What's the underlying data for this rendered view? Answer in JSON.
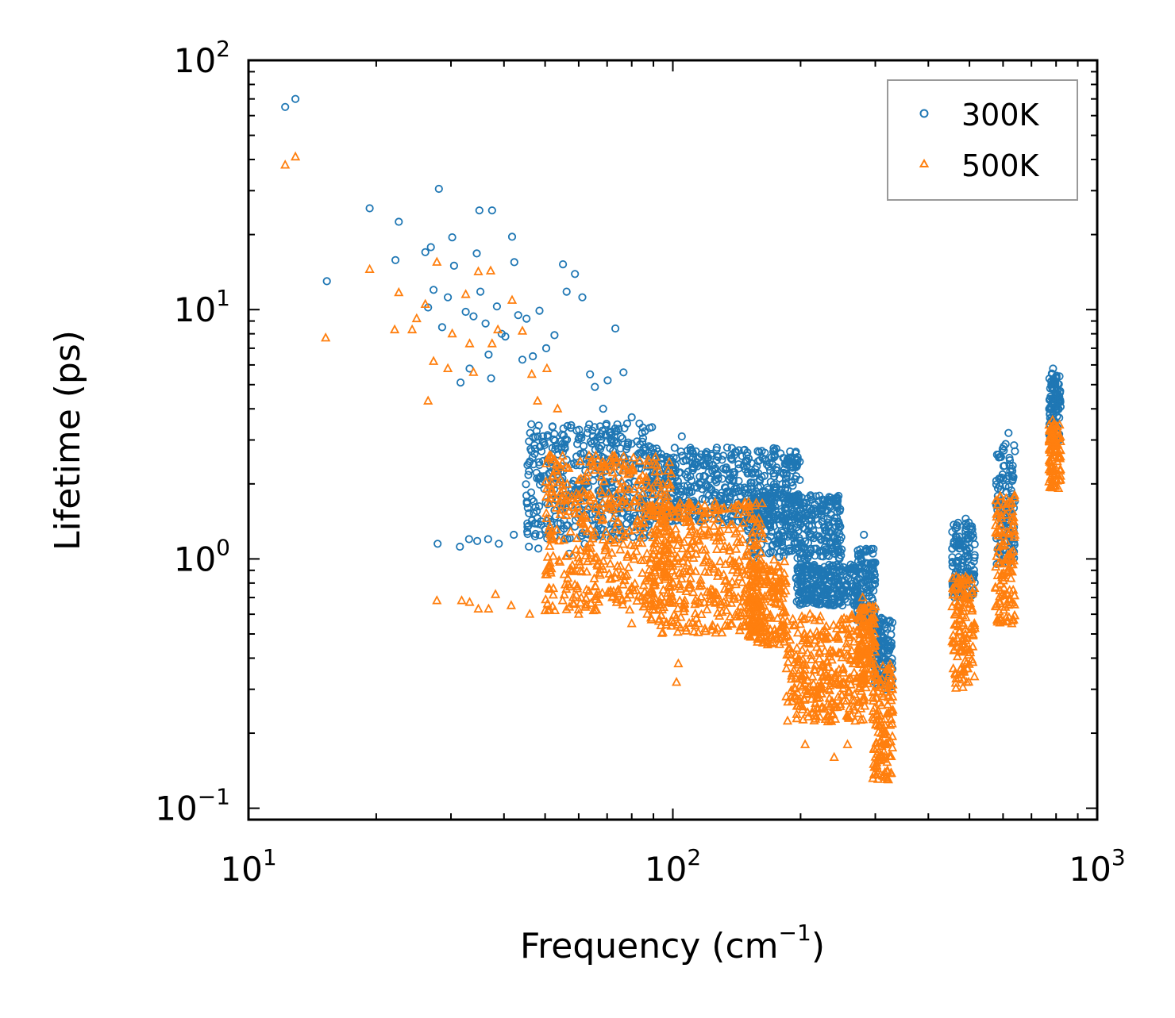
{
  "chart_data": {
    "type": "scatter",
    "xscale": "log",
    "yscale": "log",
    "xlim": [
      10,
      1000
    ],
    "ylim": [
      0.09,
      100
    ],
    "xlabel": "Frequency (cm",
    "xlabel_sup": "−1",
    "xlabel_end": ")",
    "ylabel": "Lifetime (ps)",
    "x_ticks": [
      {
        "value": 10,
        "base": "10",
        "exp": "1"
      },
      {
        "value": 100,
        "base": "10",
        "exp": "2"
      },
      {
        "value": 1000,
        "base": "10",
        "exp": "3"
      }
    ],
    "y_ticks": [
      {
        "value": 0.1,
        "base": "10",
        "exp": "−1"
      },
      {
        "value": 1,
        "base": "10",
        "exp": "0"
      },
      {
        "value": 10,
        "base": "10",
        "exp": "1"
      },
      {
        "value": 100,
        "base": "10",
        "exp": "2"
      }
    ],
    "legend_position": "top-right",
    "series": [
      {
        "name": "300K",
        "color": "#1f77b4",
        "marker": "circle",
        "points": [
          [
            12.2,
            65
          ],
          [
            12.9,
            70
          ],
          [
            15.3,
            13
          ],
          [
            19.3,
            25.5
          ],
          [
            22.2,
            15.8
          ],
          [
            22.6,
            22.5
          ],
          [
            26.1,
            17
          ],
          [
            26.5,
            10.2
          ],
          [
            26.9,
            17.8
          ],
          [
            27.3,
            12
          ],
          [
            28.1,
            30.5
          ],
          [
            28.6,
            8.5
          ],
          [
            29.5,
            11.2
          ],
          [
            30.2,
            19.5
          ],
          [
            30.5,
            15
          ],
          [
            31.6,
            5.1
          ],
          [
            32.5,
            9.8
          ],
          [
            33.2,
            5.8
          ],
          [
            33.9,
            9.4
          ],
          [
            34.5,
            16.8
          ],
          [
            35.0,
            25
          ],
          [
            35.2,
            11.8
          ],
          [
            36.2,
            8.8
          ],
          [
            36.8,
            6.6
          ],
          [
            37.3,
            5.3
          ],
          [
            37.5,
            25
          ],
          [
            38.5,
            10.3
          ],
          [
            39.5,
            8
          ],
          [
            40.3,
            7.8
          ],
          [
            41.8,
            19.6
          ],
          [
            42.3,
            15.5
          ],
          [
            43.2,
            9.5
          ],
          [
            44.2,
            6.3
          ],
          [
            45.2,
            9.2
          ],
          [
            46.8,
            6.5
          ],
          [
            48.5,
            9.9
          ],
          [
            50.3,
            7
          ],
          [
            52.6,
            7.9
          ],
          [
            55.1,
            15.2
          ],
          [
            56.2,
            11.8
          ],
          [
            58.8,
            13.9
          ],
          [
            61.2,
            11.2
          ],
          [
            63.8,
            5.5
          ],
          [
            65.5,
            4.9
          ],
          [
            68.5,
            4
          ],
          [
            70.2,
            5.2
          ],
          [
            73.2,
            8.4
          ],
          [
            76.5,
            5.6
          ],
          [
            80,
            3.7
          ],
          [
            105,
            3.1
          ],
          [
            138,
            2.5
          ],
          [
            150,
            2.2
          ],
          [
            170,
            1.6
          ],
          [
            185,
            2.2
          ],
          [
            27.9,
            1.15
          ],
          [
            31.5,
            1.12
          ],
          [
            33.1,
            1.2
          ],
          [
            34.6,
            1.18
          ],
          [
            36.7,
            1.2
          ],
          [
            38.9,
            1.15
          ],
          [
            42.2,
            1.25
          ],
          [
            45.8,
            1.12
          ],
          [
            48.2,
            1.1
          ],
          [
            52.8,
            1.22
          ],
          [
            57,
            1.05
          ],
          [
            62,
            1.15
          ],
          [
            67,
            1.25
          ],
          [
            200,
            0.95
          ],
          [
            230,
            0.9
          ],
          [
            250,
            0.82
          ],
          [
            282,
            1.25
          ],
          [
            310,
            0.58
          ],
          [
            326,
            0.45
          ],
          [
            490,
            1.45
          ],
          [
            618,
            3.2
          ],
          [
            787,
            5.8
          ]
        ],
        "clusters": [
          {
            "x": [
              45,
              90
            ],
            "y": [
              1.2,
              3.5
            ]
          },
          {
            "x": [
              88,
              200
            ],
            "y": [
              1.4,
              2.8
            ]
          },
          {
            "x": [
              150,
              250
            ],
            "y": [
              1.0,
              1.8
            ]
          },
          {
            "x": [
              195,
              275
            ],
            "y": [
              0.65,
              0.95
            ]
          },
          {
            "x": [
              270,
              300
            ],
            "y": [
              0.55,
              1.1
            ]
          },
          {
            "x": [
              298,
              330
            ],
            "y": [
              0.3,
              0.58
            ]
          },
          {
            "x": [
              455,
              515
            ],
            "y": [
              0.7,
              1.4
            ]
          },
          {
            "x": [
              578,
              640
            ],
            "y": [
              0.95,
              2.9
            ]
          },
          {
            "x": [
              770,
              820
            ],
            "y": [
              3.0,
              5.6
            ]
          }
        ]
      },
      {
        "name": "500K",
        "color": "#ff7f0e",
        "marker": "triangle",
        "points": [
          [
            12.2,
            38
          ],
          [
            12.9,
            41
          ],
          [
            15.2,
            7.7
          ],
          [
            19.3,
            14.5
          ],
          [
            22.1,
            8.3
          ],
          [
            22.6,
            11.7
          ],
          [
            24.3,
            8.3
          ],
          [
            24.9,
            9.2
          ],
          [
            26.1,
            10.5
          ],
          [
            26.5,
            4.3
          ],
          [
            27.3,
            6.2
          ],
          [
            27.8,
            15.5
          ],
          [
            29.5,
            5.8
          ],
          [
            30.2,
            8
          ],
          [
            32.5,
            11.5
          ],
          [
            33.2,
            7.3
          ],
          [
            33.9,
            5.6
          ],
          [
            34.8,
            14.2
          ],
          [
            37.2,
            14.3
          ],
          [
            37.5,
            7.3
          ],
          [
            38.7,
            8.3
          ],
          [
            41.8,
            10.9
          ],
          [
            44.2,
            8.2
          ],
          [
            46.5,
            5.5
          ],
          [
            48,
            4.3
          ],
          [
            50.5,
            5.8
          ],
          [
            53.5,
            4
          ],
          [
            27.8,
            0.68
          ],
          [
            31.8,
            0.68
          ],
          [
            33.2,
            0.67
          ],
          [
            34.8,
            0.63
          ],
          [
            36.8,
            0.63
          ],
          [
            38.2,
            0.72
          ],
          [
            41.6,
            0.65
          ],
          [
            46,
            0.6
          ],
          [
            50,
            0.62
          ],
          [
            55,
            0.68
          ],
          [
            60,
            0.6
          ],
          [
            65,
            0.62
          ],
          [
            72,
            0.7
          ],
          [
            80,
            0.55
          ],
          [
            87,
            0.6
          ],
          [
            103,
            0.38
          ],
          [
            102,
            0.32
          ],
          [
            115,
            0.55
          ],
          [
            185,
            0.28
          ],
          [
            205,
            0.18
          ],
          [
            240,
            0.16
          ],
          [
            258,
            0.18
          ],
          [
            280,
            0.7
          ],
          [
            322,
            0.13
          ],
          [
            320,
            0.14
          ],
          [
            485,
            0.82
          ],
          [
            610,
            1.75
          ],
          [
            785,
            3.6
          ],
          [
            790,
            2.0
          ]
        ],
        "clusters": [
          {
            "x": [
              50,
              100
            ],
            "y": [
              0.62,
              2.6
            ]
          },
          {
            "x": [
              88,
              165
            ],
            "y": [
              0.5,
              1.7
            ]
          },
          {
            "x": [
              150,
              185
            ],
            "y": [
              0.45,
              1.0
            ]
          },
          {
            "x": [
              185,
              285
            ],
            "y": [
              0.22,
              0.6
            ]
          },
          {
            "x": [
              275,
              300
            ],
            "y": [
              0.3,
              0.65
            ]
          },
          {
            "x": [
              295,
              330
            ],
            "y": [
              0.13,
              0.38
            ]
          },
          {
            "x": [
              455,
              515
            ],
            "y": [
              0.3,
              0.85
            ]
          },
          {
            "x": [
              575,
              640
            ],
            "y": [
              0.55,
              1.8
            ]
          },
          {
            "x": [
              770,
              820
            ],
            "y": [
              1.9,
              3.5
            ]
          }
        ]
      }
    ]
  }
}
